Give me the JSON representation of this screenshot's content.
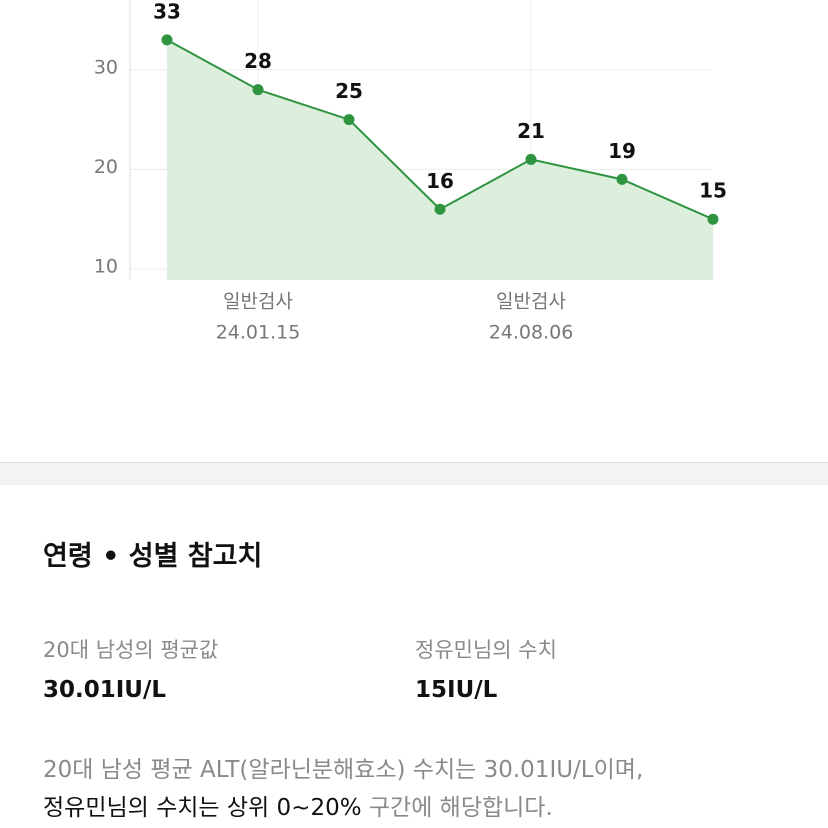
{
  "chart_data": {
    "type": "line",
    "categories": [
      null,
      "일반검사",
      null,
      null,
      "일반검사",
      null,
      null
    ],
    "dates": [
      null,
      "24.01.15",
      null,
      null,
      "24.08.06",
      null,
      null
    ],
    "values": [
      33,
      28,
      25,
      16,
      21,
      19,
      15
    ],
    "color": "#2e9440",
    "fill": "#dcefdc",
    "ylim": [
      8.9,
      37
    ],
    "yticks": [
      10,
      20,
      30
    ],
    "grid": true
  },
  "reference": {
    "title": "연령 • 성별 참고치",
    "average_label": "20대 남성의 평균값",
    "average_value": "30.01IU/L",
    "user_label": "정유민님의 수치",
    "user_value": "15IU/L",
    "description_line1": "20대 남성 평균 ALT(알라닌분해효소) 수치는 30.01IU/L이며,",
    "description_highlight": "정유민님의 수치는 상위 0~20%",
    "description_rest": " 구간에 해당합니다."
  }
}
